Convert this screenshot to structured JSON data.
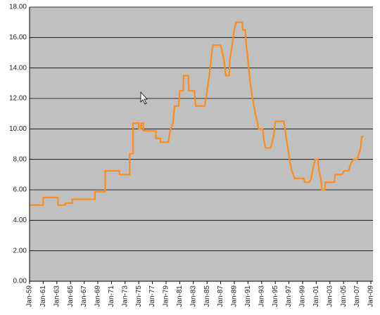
{
  "chart_data": {
    "type": "line",
    "ylim": [
      0,
      18
    ],
    "yticks": [
      {
        "value": 0,
        "label": "0.00"
      },
      {
        "value": 2,
        "label": "2.00"
      },
      {
        "value": 4,
        "label": "4.00"
      },
      {
        "value": 6,
        "label": "6.00"
      },
      {
        "value": 8,
        "label": "8.00"
      },
      {
        "value": 10,
        "label": "10.00"
      },
      {
        "value": 12,
        "label": "12.00"
      },
      {
        "value": 14,
        "label": "14.00"
      },
      {
        "value": 16,
        "label": "16.00"
      },
      {
        "value": 18,
        "label": "18.00"
      }
    ],
    "xlim": [
      "Jan-59",
      "Jan-09"
    ],
    "xticks": [
      "Jan-59",
      "Jan-61",
      "Jan-63",
      "Jan-65",
      "Jan-67",
      "Jan-69",
      "Jan-71",
      "Jan-73",
      "Jan-75",
      "Jan-77",
      "Jan-79",
      "Jan-81",
      "Jan-83",
      "Jan-85",
      "Jan-87",
      "Jan-89",
      "Jan-91",
      "Jan-93",
      "Jan-95",
      "Jan-97",
      "Jan-99",
      "Jan-01",
      "Jan-03",
      "Jan-05",
      "Jan-07",
      "Jan-09"
    ],
    "grid": true,
    "x": [
      "Jan-59",
      "Jan-61",
      "Jan-61",
      "Mar-63",
      "Mar-63",
      "Apr-64",
      "Apr-64",
      "Apr-65",
      "Apr-65",
      "Aug-68",
      "Aug-68",
      "Feb-70",
      "Feb-70",
      "Mar-72",
      "Mar-72",
      "Sep-73",
      "Sep-73",
      "Mar-74",
      "Mar-74",
      "Jan-75",
      "Jan-75",
      "May-75",
      "May-75",
      "Sep-75",
      "Sep-75",
      "Jul-77",
      "Jul-77",
      "Mar-78",
      "Mar-78",
      "May-79",
      "Aug-79",
      "Jan-80",
      "Apr-80",
      "Nov-80",
      "Jan-81",
      "Jul-81",
      "Aug-81",
      "Apr-82",
      "May-82",
      "Mar-83",
      "May-83",
      "Sep-84",
      "Jan-85",
      "May-85",
      "Nov-85",
      "Jan-87",
      "Jul-87",
      "Oct-87",
      "Apr-88",
      "May-88",
      "Sep-88",
      "Jan-89",
      "Apr-89",
      "Mar-90",
      "Apr-90",
      "Aug-90",
      "Oct-90",
      "Jan-91",
      "May-91",
      "Sep-91",
      "Feb-92",
      "Aug-92",
      "Mar-93",
      "May-93",
      "Aug-93",
      "May-94",
      "Oct-94",
      "Jan-95",
      "Apr-96",
      "Sep-96",
      "Feb-97",
      "Jun-97",
      "Nov-97",
      "Mar-99",
      "May-99",
      "Jan-00",
      "Apr-00",
      "Aug-00",
      "Nov-00",
      "Apr-01",
      "Jun-01",
      "Oct-01",
      "Nov-01",
      "Apr-02",
      "May-02",
      "Sep-03",
      "Oct-03",
      "Oct-04",
      "Feb-05",
      "Oct-05",
      "Feb-06",
      "Jul-06",
      "Jan-07",
      "Mar-07",
      "Jul-07",
      "Sep-07",
      "Dec-07"
    ],
    "series": [
      {
        "color": "#ff8c1a",
        "values": [
          5.0,
          5.0,
          5.5,
          5.5,
          5.0,
          5.0,
          5.13,
          5.13,
          5.38,
          5.38,
          5.88,
          5.88,
          7.25,
          7.25,
          7.0,
          7.0,
          8.38,
          8.38,
          10.38,
          10.38,
          10.0,
          10.0,
          10.38,
          10.38,
          9.88,
          9.88,
          9.38,
          9.38,
          9.13,
          9.13,
          9.88,
          10.38,
          11.5,
          11.5,
          12.5,
          12.5,
          13.5,
          13.5,
          12.5,
          12.5,
          11.5,
          11.5,
          12.5,
          13.5,
          15.5,
          15.5,
          14.5,
          13.5,
          13.5,
          14.5,
          15.5,
          16.5,
          17.0,
          17.0,
          16.5,
          16.5,
          15.5,
          14.5,
          13.0,
          12.0,
          11.0,
          10.0,
          10.0,
          9.25,
          8.75,
          8.75,
          9.5,
          10.5,
          10.5,
          9.25,
          8.0,
          7.25,
          6.75,
          6.75,
          6.5,
          6.5,
          6.75,
          7.5,
          8.0,
          8.0,
          7.25,
          6.5,
          6.0,
          6.0,
          6.5,
          6.5,
          7.0,
          7.0,
          7.25,
          7.25,
          7.75,
          8.0,
          8.0,
          8.25,
          8.75,
          9.5,
          9.5
        ]
      }
    ]
  }
}
